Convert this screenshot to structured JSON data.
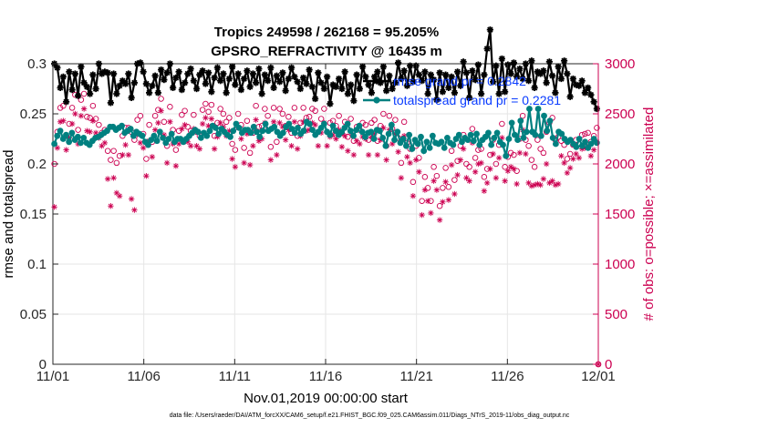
{
  "chart_data": {
    "type": "line",
    "title_line1": "Tropics 249598 / 262168 = 95.205%",
    "title_line2": "GPSRO_REFRACTIVITY @ 16435 m",
    "xlabel": "Nov.01,2019 00:00:00 start",
    "ylabel_left": "rmse and totalspread",
    "ylabel_right": "# of obs: o=possible; ×=assimilated",
    "x_tick_labels": [
      "11/01",
      "11/06",
      "11/11",
      "11/16",
      "11/21",
      "11/26",
      "12/01"
    ],
    "x_tick_days": [
      0,
      5,
      10,
      15,
      20,
      25,
      30
    ],
    "xlim_days": [
      0,
      30
    ],
    "y_left_ticks": [
      "0",
      "0.05",
      "0.1",
      "0.15",
      "0.2",
      "0.25",
      "0.3"
    ],
    "y_left_tick_values": [
      0,
      0.05,
      0.1,
      0.15,
      0.2,
      0.25,
      0.3
    ],
    "ylim_left": [
      0,
      0.3
    ],
    "y_right_ticks": [
      "0",
      "500",
      "1000",
      "1500",
      "2000",
      "2500",
      "3000"
    ],
    "y_right_tick_values": [
      0,
      500,
      1000,
      1500,
      2000,
      2500,
      3000
    ],
    "ylim_right": [
      0,
      3000
    ],
    "grid": true,
    "colors": {
      "rmse": "#000000",
      "totalspread": "#008080",
      "obs": "#cc0051",
      "legend_text": "#0a3cff",
      "grid": "#e6e6e6"
    },
    "series": [
      {
        "name": "rmse grand pr = 0.2842",
        "axis": "left",
        "marker": "asterisk",
        "values": [
          0.3,
          0.296,
          0.276,
          0.287,
          0.262,
          0.292,
          0.274,
          0.29,
          0.268,
          0.297,
          0.281,
          0.277,
          0.27,
          0.289,
          0.275,
          0.3,
          0.29,
          0.292,
          0.291,
          0.261,
          0.29,
          0.27,
          0.278,
          0.283,
          0.28,
          0.29,
          0.266,
          0.281,
          0.3,
          0.301,
          0.292,
          0.28,
          0.271,
          0.278,
          0.288,
          0.271,
          0.294,
          0.284,
          0.291,
          0.3,
          0.276,
          0.286,
          0.292,
          0.274,
          0.281,
          0.29,
          0.295,
          0.283,
          0.275,
          0.289,
          0.293,
          0.28,
          0.291,
          0.272,
          0.286,
          0.296,
          0.283,
          0.29,
          0.271,
          0.285,
          0.297,
          0.279,
          0.29,
          0.274,
          0.285,
          0.293,
          0.277,
          0.29,
          0.281,
          0.295,
          0.27,
          0.289,
          0.283,
          0.296,
          0.276,
          0.288,
          0.282,
          0.291,
          0.273,
          0.285,
          0.296,
          0.287,
          0.282,
          0.275,
          0.286,
          0.28,
          0.294,
          0.277,
          0.265,
          0.291,
          0.281,
          0.275,
          0.287,
          0.26,
          0.279,
          0.277,
          0.285,
          0.275,
          0.292,
          0.27,
          0.279,
          0.263,
          0.289,
          0.275,
          0.297,
          0.287,
          0.279,
          0.271,
          0.287,
          0.292,
          0.281,
          0.297,
          0.273,
          0.288,
          0.275,
          0.281,
          0.301,
          0.285,
          0.293,
          0.278,
          0.298,
          0.282,
          0.298,
          0.289,
          0.283,
          0.292,
          0.27,
          0.289,
          0.284,
          0.264,
          0.291,
          0.272,
          0.289,
          0.276,
          0.287,
          0.271,
          0.292,
          0.278,
          0.302,
          0.291,
          0.266,
          0.293,
          0.284,
          0.299,
          0.27,
          0.289,
          0.315,
          0.334,
          0.282,
          0.298,
          0.27,
          0.305,
          0.272,
          0.299,
          0.29,
          0.301,
          0.287,
          0.295,
          0.285,
          0.3,
          0.283,
          0.303,
          0.276,
          0.292,
          0.29,
          0.293,
          0.281,
          0.302,
          0.288,
          0.271,
          0.297,
          0.285,
          0.303,
          0.29,
          0.267,
          0.285,
          0.279,
          0.278,
          0.283,
          0.271,
          0.276,
          0.269,
          0.262,
          0.255
        ]
      },
      {
        "name": "totalspread grand pr = 0.2281",
        "axis": "left",
        "marker": "circle-filled",
        "values": [
          0.22,
          0.228,
          0.233,
          0.225,
          0.229,
          0.222,
          0.231,
          0.224,
          0.227,
          0.221,
          0.226,
          0.221,
          0.219,
          0.223,
          0.226,
          0.227,
          0.229,
          0.231,
          0.233,
          0.237,
          0.237,
          0.234,
          0.236,
          0.238,
          0.231,
          0.233,
          0.235,
          0.228,
          0.232,
          0.23,
          0.228,
          0.222,
          0.219,
          0.224,
          0.228,
          0.223,
          0.232,
          0.226,
          0.221,
          0.225,
          0.23,
          0.222,
          0.225,
          0.225,
          0.222,
          0.225,
          0.228,
          0.231,
          0.234,
          0.232,
          0.226,
          0.231,
          0.228,
          0.233,
          0.238,
          0.236,
          0.23,
          0.235,
          0.232,
          0.229,
          0.227,
          0.233,
          0.24,
          0.236,
          0.231,
          0.234,
          0.234,
          0.231,
          0.237,
          0.232,
          0.227,
          0.233,
          0.24,
          0.233,
          0.235,
          0.237,
          0.232,
          0.228,
          0.231,
          0.237,
          0.24,
          0.235,
          0.231,
          0.236,
          0.23,
          0.233,
          0.242,
          0.24,
          0.234,
          0.229,
          0.232,
          0.236,
          0.24,
          0.232,
          0.229,
          0.238,
          0.233,
          0.229,
          0.232,
          0.236,
          0.24,
          0.233,
          0.228,
          0.234,
          0.238,
          0.232,
          0.227,
          0.231,
          0.232,
          0.225,
          0.234,
          0.233,
          0.226,
          0.218,
          0.23,
          0.239,
          0.224,
          0.232,
          0.221,
          0.225,
          0.218,
          0.229,
          0.215,
          0.224,
          0.22,
          0.227,
          0.213,
          0.222,
          0.216,
          0.228,
          0.221,
          0.22,
          0.222,
          0.216,
          0.226,
          0.221,
          0.219,
          0.225,
          0.229,
          0.222,
          0.226,
          0.224,
          0.229,
          0.223,
          0.23,
          0.219,
          0.224,
          0.227,
          0.231,
          0.219,
          0.226,
          0.231,
          0.222,
          0.219,
          0.208,
          0.225,
          0.241,
          0.229,
          0.224,
          0.243,
          0.226,
          0.232,
          0.255,
          0.232,
          0.229,
          0.255,
          0.228,
          0.248,
          0.233,
          0.243,
          0.226,
          0.22,
          0.232,
          0.23,
          0.225,
          0.222,
          0.224,
          0.22,
          0.217,
          0.225,
          0.218,
          0.222,
          0.216,
          0.22,
          0.225,
          0.221
        ]
      },
      {
        "name": "possible",
        "axis": "right",
        "marker": "open-circle",
        "values": [
          2000,
          2320,
          2560,
          2580,
          2280,
          2400,
          2560,
          2690,
          2340,
          2640,
          2700,
          2470,
          2460,
          2580,
          2450,
          2390,
          2310,
          2340,
          2130,
          2040,
          2130,
          2010,
          2080,
          2280,
          2360,
          2360,
          2320,
          2240,
          2440,
          2480,
          2300,
          2050,
          2390,
          2220,
          2480,
          2540,
          2650,
          2420,
          2180,
          2570,
          2340,
          2140,
          2330,
          2490,
          2530,
          2370,
          2330,
          2490,
          2320,
          2280,
          2540,
          2600,
          2520,
          2590,
          2280,
          2410,
          2550,
          2500,
          2420,
          2460,
          2200,
          2140,
          2500,
          2390,
          2160,
          2430,
          2110,
          2310,
          2580,
          2370,
          2380,
          2550,
          2480,
          2170,
          2560,
          2220,
          2550,
          2500,
          2380,
          2470,
          2310,
          2560,
          2280,
          2410,
          2560,
          2460,
          2470,
          2550,
          2530,
          2320,
          2450,
          2550,
          2320,
          2410,
          2430,
          2380,
          2480,
          2310,
          2420,
          2270,
          2450,
          2230,
          2370,
          2340,
          2410,
          2390,
          2240,
          2410,
          2440,
          2230,
          2380,
          2500,
          2180,
          2480,
          2350,
          2440,
          2260,
          2010,
          2420,
          2210,
          2150,
          1820,
          2180,
          2060,
          1630,
          1870,
          1760,
          1630,
          1970,
          1880,
          1580,
          1760,
          1960,
          1770,
          2130,
          1840,
          2030,
          2180,
          2290,
          2000,
          1970,
          2350,
          2060,
          2140,
          2150,
          1870,
          1950,
          2090,
          2240,
          2000,
          2190,
          2400,
          1970,
          2070,
          2110,
          2090,
          1930,
          2250,
          2480,
          2240,
          2180,
          2040,
          1970,
          2240,
          2150,
          2110,
          2320,
          2410,
          2460,
          2240,
          2270,
          2230,
          2190,
          2050,
          2100,
          2190,
          2240,
          2200,
          2290,
          2300,
          2310,
          2220,
          2280,
          2360
        ]
      },
      {
        "name": "assimilated",
        "axis": "right",
        "marker": "asterisk",
        "values": [
          1570,
          2160,
          2420,
          2430,
          2140,
          2260,
          2400,
          2500,
          2200,
          2480,
          2550,
          2330,
          2320,
          2430,
          2310,
          2260,
          2180,
          2210,
          1850,
          1580,
          1860,
          1710,
          1680,
          2090,
          2190,
          2090,
          1650,
          1540,
          2290,
          2210,
          2160,
          1880,
          2230,
          2070,
          2340,
          2410,
          2530,
          2290,
          2010,
          2420,
          2200,
          1980,
          2200,
          2350,
          2390,
          2220,
          2180,
          2350,
          2180,
          2150,
          2400,
          2460,
          2380,
          2450,
          2150,
          2270,
          2410,
          2370,
          2280,
          2330,
          2050,
          1970,
          2360,
          2250,
          2010,
          2300,
          1990,
          2180,
          2440,
          2230,
          2250,
          2410,
          2340,
          2040,
          2420,
          2090,
          2410,
          2370,
          2240,
          2340,
          2180,
          2420,
          2150,
          2280,
          2420,
          2330,
          2340,
          2410,
          2390,
          2180,
          2310,
          2410,
          2180,
          2270,
          2290,
          2250,
          2340,
          2170,
          2280,
          2130,
          2310,
          2090,
          2230,
          2200,
          2270,
          2250,
          2090,
          2270,
          2300,
          2090,
          2240,
          2360,
          2040,
          2340,
          2200,
          2300,
          2120,
          1860,
          2280,
          2070,
          2010,
          1680,
          2040,
          1920,
          1490,
          1740,
          1630,
          1510,
          1830,
          1740,
          1440,
          1620,
          1820,
          1640,
          1990,
          1700,
          1890,
          2040,
          2150,
          1860,
          1830,
          2210,
          1920,
          2000,
          2010,
          1730,
          1810,
          1950,
          2100,
          1860,
          2060,
          2260,
          1830,
          1930,
          1970,
          1950,
          1800,
          2110,
          2340,
          2100,
          1810,
          1780,
          1790,
          1800,
          1790,
          1850,
          2000,
          1810,
          1830,
          1790,
          1800,
          2080,
          2010,
          1910,
          1960,
          2050,
          2100,
          2060,
          2150,
          2160,
          2170,
          2080,
          2140,
          2220
        ]
      }
    ]
  },
  "footer": {
    "data_file": "data file: /Users/raeder/DAI/ATM_forcXX/CAM6_setup/f.e21.FHIST_BGC.f09_025.CAM6assim.011/Diags_NTrS_2019-11/obs_diag_output.nc"
  }
}
